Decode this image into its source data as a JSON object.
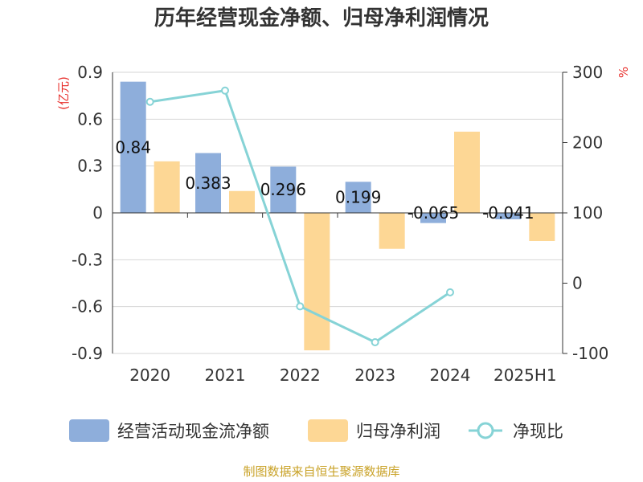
{
  "chart_data": {
    "type": "bar",
    "title": "历年经营现金净额、归母净利润情况",
    "categories": [
      "2020",
      "2021",
      "2022",
      "2023",
      "2024",
      "2025H1"
    ],
    "series": [
      {
        "name": "经营活动现金流净额",
        "kind": "bar",
        "axis": "left",
        "color": "#8eaedb",
        "values": [
          0.84,
          0.383,
          0.296,
          0.199,
          -0.065,
          -0.041
        ],
        "labels": [
          "0.84",
          "0.383",
          "0.296",
          "0.199",
          "-0.065",
          "-0.041"
        ]
      },
      {
        "name": "归母净利润",
        "kind": "bar",
        "axis": "left",
        "color": "#fdd795",
        "values": [
          0.33,
          0.14,
          -0.88,
          -0.23,
          0.52,
          -0.18
        ]
      },
      {
        "name": "净现比",
        "kind": "line",
        "axis": "right",
        "color": "#86d3d6",
        "values": [
          258,
          274,
          -33,
          -84,
          -13,
          null
        ]
      }
    ],
    "y_left": {
      "unit": "(亿元)",
      "ylim": [
        -0.9,
        0.9
      ],
      "ticks": [
        "0.9",
        "0.6",
        "0.3",
        "0",
        "-0.3",
        "-0.6",
        "-0.9"
      ]
    },
    "y_right": {
      "unit": "%",
      "ylim": [
        -100,
        300
      ],
      "ticks": [
        "300",
        "200",
        "100",
        "0",
        "-100"
      ]
    },
    "grid": true,
    "legend": "bottom"
  },
  "source": "制图数据来自恒生聚源数据库"
}
